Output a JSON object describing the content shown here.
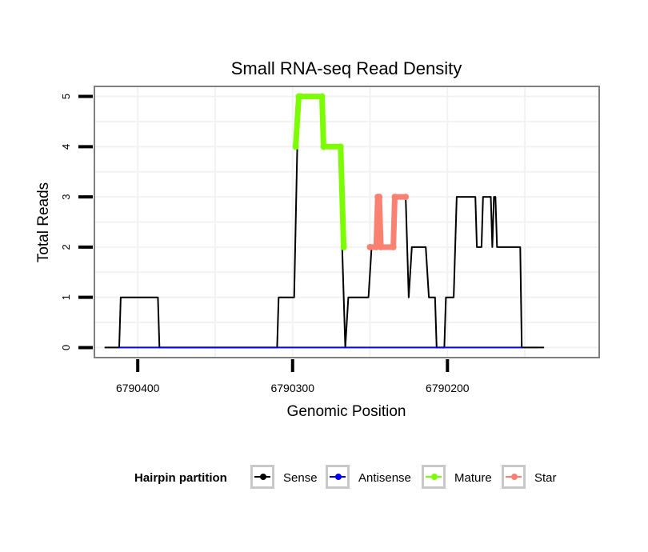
{
  "chart_data": {
    "type": "line",
    "title": "Small RNA-seq Read Density",
    "xlabel": "Genomic Position",
    "ylabel": "Total Reads",
    "xlim": [
      6790428,
      6790102
    ],
    "ylim": [
      -0.2,
      5.2
    ],
    "x_reversed": true,
    "x_ticks": [
      6790400,
      6790300,
      6790200
    ],
    "x_tick_labels": [
      "6790400",
      "6790300",
      "6790200"
    ],
    "y_ticks": [
      0,
      1,
      2,
      3,
      4,
      5
    ],
    "y_tick_labels": [
      "0",
      "1",
      "2",
      "3",
      "4",
      "5"
    ],
    "grid": true,
    "legend": {
      "title": "Hairpin partition",
      "position": "bottom",
      "entries": [
        {
          "name": "Sense",
          "color": "#000000"
        },
        {
          "name": "Antisense",
          "color": "#0000ff"
        },
        {
          "name": "Mature",
          "color": "#7cfc00"
        },
        {
          "name": "Star",
          "color": "#fa8072"
        }
      ]
    },
    "series": [
      {
        "name": "Sense",
        "color": "#000000",
        "points": [
          [
            6790421,
            0
          ],
          [
            6790412,
            0
          ],
          [
            6790411,
            1
          ],
          [
            6790387,
            1
          ],
          [
            6790386,
            0
          ],
          [
            6790310,
            0
          ],
          [
            6790309,
            1
          ],
          [
            6790299,
            1
          ],
          [
            6790297,
            4
          ],
          [
            6790295,
            5
          ],
          [
            6790281,
            5
          ],
          [
            6790280,
            4
          ],
          [
            6790269,
            4
          ],
          [
            6790268,
            2
          ],
          [
            6790266,
            0
          ],
          [
            6790264,
            1
          ],
          [
            6790251,
            1
          ],
          [
            6790249,
            2
          ],
          [
            6790246,
            2
          ],
          [
            6790244,
            3
          ],
          [
            6790243,
            2
          ],
          [
            6790235,
            2
          ],
          [
            6790234,
            3
          ],
          [
            6790227,
            3
          ],
          [
            6790225,
            1
          ],
          [
            6790223,
            2
          ],
          [
            6790214,
            2
          ],
          [
            6790212,
            1
          ],
          [
            6790208,
            1
          ],
          [
            6790207,
            0
          ],
          [
            6790202,
            0
          ],
          [
            6790201,
            1
          ],
          [
            6790196,
            1
          ],
          [
            6790194,
            3
          ],
          [
            6790182,
            3
          ],
          [
            6790181,
            2
          ],
          [
            6790178,
            2
          ],
          [
            6790177,
            3
          ],
          [
            6790172,
            3
          ],
          [
            6790171,
            2
          ],
          [
            6790170,
            3
          ],
          [
            6790169,
            3
          ],
          [
            6790168,
            2
          ],
          [
            6790153,
            2
          ],
          [
            6790152,
            0
          ],
          [
            6790138,
            0
          ]
        ]
      },
      {
        "name": "Antisense",
        "color": "#0000ff",
        "points": [
          [
            6790412,
            0
          ],
          [
            6790152,
            0
          ]
        ]
      },
      {
        "name": "Mature",
        "color": "#7cfc00",
        "points": [
          [
            6790298,
            4
          ],
          [
            6790296,
            5
          ],
          [
            6790295,
            5
          ],
          [
            6790281,
            5
          ],
          [
            6790280,
            4
          ],
          [
            6790269,
            4
          ],
          [
            6790267,
            2
          ]
        ]
      },
      {
        "name": "Star",
        "color": "#fa8072",
        "points": [
          [
            6790250,
            2
          ],
          [
            6790246,
            2
          ],
          [
            6790245,
            3
          ],
          [
            6790244,
            3
          ],
          [
            6790243,
            2
          ],
          [
            6790235,
            2
          ],
          [
            6790234,
            3
          ],
          [
            6790227,
            3
          ]
        ]
      }
    ]
  }
}
